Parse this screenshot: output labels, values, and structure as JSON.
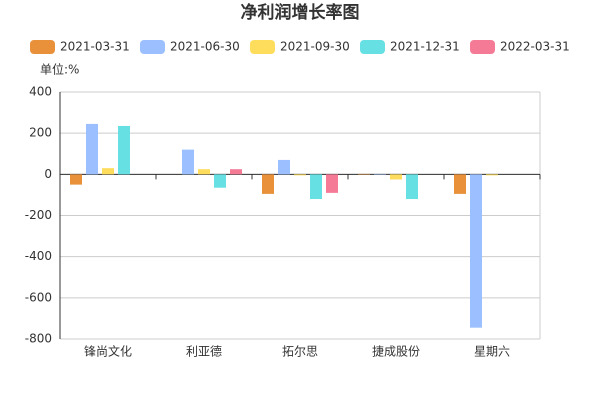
{
  "chart_data": {
    "type": "bar",
    "title": "净利润增长率图",
    "unit_label": "单位:%",
    "categories": [
      "锋尚文化",
      "利亚德",
      "拓尔思",
      "捷成股份",
      "星期六"
    ],
    "series": [
      {
        "name": "2021-03-31",
        "color": "#e8903a",
        "values": [
          -50,
          null,
          -95,
          2,
          -95
        ]
      },
      {
        "name": "2021-06-30",
        "color": "#9bbfff",
        "values": [
          245,
          120,
          70,
          2,
          -745
        ]
      },
      {
        "name": "2021-09-30",
        "color": "#ffdd5c",
        "values": [
          30,
          25,
          -5,
          -25,
          -5
        ]
      },
      {
        "name": "2021-12-31",
        "color": "#66e0e3",
        "values": [
          235,
          -65,
          -120,
          -120,
          null
        ]
      },
      {
        "name": "2022-03-31",
        "color": "#f47a96",
        "values": [
          null,
          25,
          -90,
          null,
          null
        ]
      }
    ],
    "ylim": [
      -800,
      400
    ],
    "yticks": [
      -800,
      -600,
      -400,
      -200,
      0,
      200,
      400
    ],
    "grid": true
  }
}
